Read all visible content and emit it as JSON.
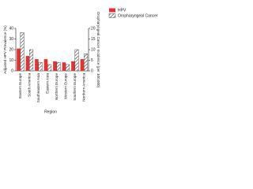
{
  "chart_data": {
    "type": "bar",
    "x_label": "Region",
    "y_label": "Adjusted HPV Prevalence (%)",
    "y2_label": "Oropharyngeal Cancer Incidence (per 100,000)",
    "categories": [
      "Eastern Europe",
      "South America",
      "Southeastern Asia",
      "Eastern Asia",
      "Northern Europe",
      "Western Europe",
      "Southern Europe",
      "Northern America"
    ],
    "series": [
      {
        "name": "HPV",
        "color": "#e8302f",
        "values": [
          21,
          14,
          11,
          11,
          9,
          8,
          9,
          11
        ]
      },
      {
        "name": "Oropharyngeal Cancer",
        "color": "#555555",
        "pattern": "hatch",
        "axis": "y2",
        "values": [
          18,
          10,
          4,
          3,
          4,
          3,
          10,
          8
        ]
      }
    ],
    "ylim": [
      0,
      40
    ],
    "yticks": [
      0,
      10,
      20,
      30,
      40
    ],
    "y2lim": [
      0,
      20
    ],
    "y2ticks": [
      0,
      5,
      10,
      15,
      20
    ],
    "legend": "top-right"
  }
}
